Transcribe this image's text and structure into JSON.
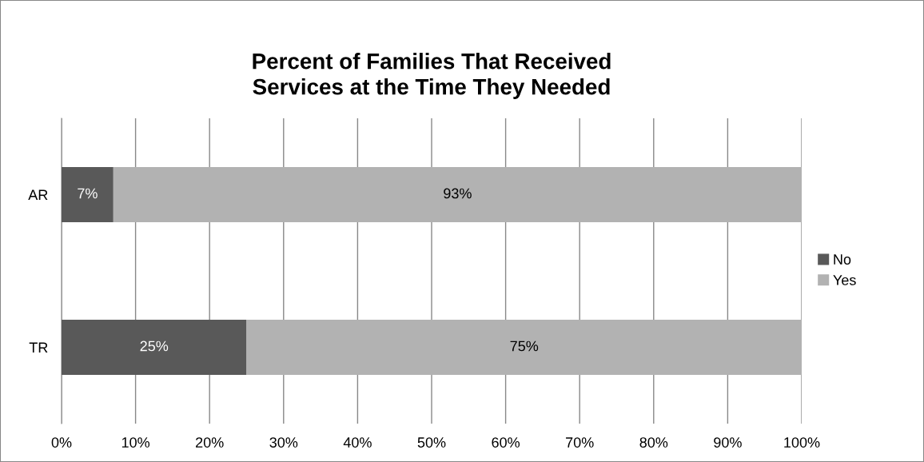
{
  "chart_data": {
    "type": "bar",
    "orientation": "horizontal",
    "stacked": true,
    "title": "Percent of Families That Received\nServices at the Time They Needed",
    "categories": [
      "AR",
      "TR"
    ],
    "series": [
      {
        "name": "No",
        "color": "#595959",
        "values": [
          7,
          25
        ],
        "value_labels": [
          "7%",
          "25%"
        ]
      },
      {
        "name": "Yes",
        "color": "#b2b2b2",
        "values": [
          93,
          75
        ],
        "value_labels": [
          "93%",
          "75%"
        ]
      }
    ],
    "xlim": [
      0,
      100
    ],
    "xticks": [
      {
        "value": 0,
        "label": "0%"
      },
      {
        "value": 10,
        "label": "10%"
      },
      {
        "value": 20,
        "label": "20%"
      },
      {
        "value": 30,
        "label": "30%"
      },
      {
        "value": 40,
        "label": "40%"
      },
      {
        "value": 50,
        "label": "50%"
      },
      {
        "value": 60,
        "label": "60%"
      },
      {
        "value": 70,
        "label": "70%"
      },
      {
        "value": 80,
        "label": "80%"
      },
      {
        "value": 90,
        "label": "90%"
      },
      {
        "value": 100,
        "label": "100%"
      }
    ],
    "grid": "x",
    "legend": "right"
  }
}
